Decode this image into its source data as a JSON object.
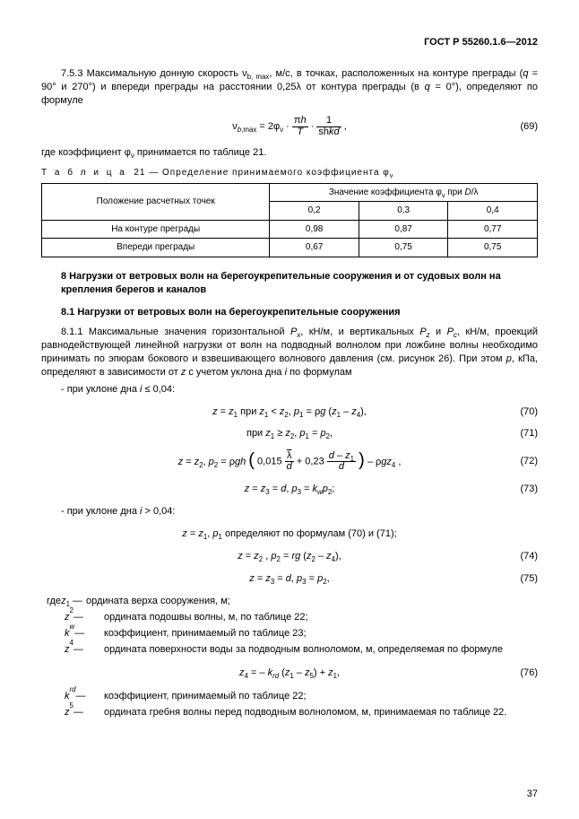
{
  "header": "ГОСТ Р 55260.1.6—2012",
  "p753": "7.5.3 Максимальную донную скорость ν<sub>b, max</sub>, м/с, в точках, расположенных на контуре преграды (<i>q</i> = 90° и 270°) и впереди преграды на расстоянии 0,25λ от контура преграды (в <i>q</i> = 0°), определяют по формуле",
  "eq69_lhs": "ν<sub><i>b</i>,max</sub> = 2φ<sub>ν</sub> ·",
  "eq69_f1n": "π<i>h</i>",
  "eq69_f1d": "<i>T</i>",
  "eq69_mid": " · ",
  "eq69_f2n": "1",
  "eq69_f2d": "sh<i>kd</i>",
  "eq69_tail": ",",
  "eq69_num": "(69)",
  "afterEq69": "где коэффициент φ<sub>ν</sub> принимается по таблице 21.",
  "tableCapPrefix": "Т а б л и ц а",
  "tableCapNum": "21",
  "tableCapRest": " — Определение принимаемого коэффициента φ<sub>ν</sub>",
  "thLeft": "Положение расчетных точек",
  "thRight": "Значение коэффициента φ<sub>ν</sub> при <i>D</i>/λ",
  "c1": "0,2",
  "c2": "0,3",
  "c3": "0,4",
  "r1": "На контуре преграды",
  "r1v": [
    "0,98",
    "0,87",
    "0,77"
  ],
  "r2": "Впереди преграды",
  "r2v": [
    "0,67",
    "0,75",
    "0,75"
  ],
  "h8": "8 Нагрузки от ветровых волн на берегоукрепительные сооружения и от судовых волн на крепления берегов и каналов",
  "h81": "8.1 Нагрузки от ветровых волн на берегоукрепительные сооружения",
  "p811": "8.1.1 Максимальные значения горизонтальной <i>P<sub>x</sub></i>, кН/м, и вертикальных <i>P<sub>z</sub></i> и <i>P<sub>c</sub></i>, кН/м, проекций равнодействующей линейной нагрузки от волн на подводный волнолом при ложбине волны необходимо принимать по эпюрам бокового и взвешивающего волнового давления (см. рисунок 26). При этом <i>p</i>, кПа, определяют в зависимости от <i>z</i> с учетом уклона дна <i>i</i> по формулам",
  "slope1": "- при уклоне дна <i>i</i> ≤ 0,04:",
  "eq70": "<i>z</i> = <i>z</i><sub>1</sub> при <i>z</i><sub>1</sub> &lt; <i>z</i><sub>2</sub>, <i>p</i><sub>1</sub> = ρ<i>g</i> (<i>z</i><sub>1</sub> – <i>z</i><sub>4</sub>),",
  "eq70n": "(70)",
  "eq71": "при <i>z</i><sub>1</sub> ≥ <i>z</i><sub>2</sub>, <i>p</i><sub>1</sub> = <i>p</i><sub>2</sub>,",
  "eq71n": "(71)",
  "eq72_lhs": "<i>z</i> = <i>z</i><sub>2</sub>, <i>p</i><sub>2</sub> = ρ<i>gh</i> ",
  "eq72_in1": "0,015",
  "eq72_f1n": "<span class=\"ov\">λ</span>",
  "eq72_f1d": "<i>d</i>",
  "eq72_plus": " + 0,23 ",
  "eq72_f2n": "<i>d</i> – <i>z</i><sub>1</sub>",
  "eq72_f2d": "<i>d</i>",
  "eq72_tail": "– ρ<i>gz</i><sub>4</sub> ,",
  "eq72n": "(72)",
  "eq73": "<i>z</i> = <i>z</i><sub>3</sub> = <i>d</i>, <i>p</i><sub>3</sub> = <i>k</i><sub><i>w</i></sub><i>p</i><sub>2</sub>;",
  "eq73n": "(73)",
  "slope2": "- при уклоне дна <i>i</i> &gt; 0,04:",
  "eqA": "<i>z</i> = <i>z</i><sub>1</sub>, <i>p</i><sub>1</sub> определяют по формулам (70) и (71);",
  "eq74": "<i>z</i> = <i>z</i><sub>2</sub> , <i>p</i><sub>2</sub> = <i>rg</i> (<i>z</i><sub>2</sub> – <i>z</i><sub>4</sub>),",
  "eq74n": "(74)",
  "eq75": "<i>z</i> = <i>z</i><sub>3</sub> = <i>d</i>, <i>p</i><sub>3</sub> = <i>p</i><sub>2</sub>,",
  "eq75n": "(75)",
  "defsHead": "где ",
  "def": [
    {
      "k": "<i>z</i><sub>1</sub>  —",
      "v": "ордината верха сооружения, м;"
    },
    {
      "k": "<i>z</i><sub>2</sub>  —",
      "v": "ордината подошвы волны, м, по таблице 22;"
    },
    {
      "k": "<i>k</i><sub><i>w</i></sub>  —",
      "v": "коэффициент, принимаемый по таблице 23;"
    },
    {
      "k": "<i>z</i><sub>4</sub>  —",
      "v": "ордината поверхности воды за подводным волноломом, м, определяемая по формуле"
    }
  ],
  "eq76": "<i>z</i><sub>4</sub> = – <i>k</i><sub><i>rd</i></sub> (<i>z</i><sub>1</sub> – <i>z</i><sub>5</sub>) + <i>z</i><sub>1</sub>,",
  "eq76n": "(76)",
  "def2": [
    {
      "k": "<i>k</i><sub><i>rd</i></sub> —",
      "v": "коэффициент, принимаемый по таблице 22;"
    },
    {
      "k": "<i>z</i><sub>5</sub>  —",
      "v": "ордината гребня волны перед подводным волноломом, м, принимаемая по таблице 22."
    }
  ],
  "page": "37"
}
